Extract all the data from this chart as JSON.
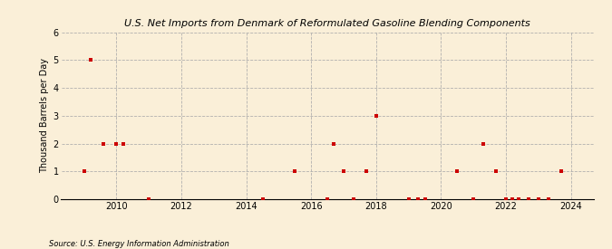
{
  "title": "U.S. Net Imports from Denmark of Reformulated Gasoline Blending Components",
  "ylabel": "Thousand Barrels per Day",
  "source_text": "Source: U.S. Energy Information Administration",
  "background_color": "#faefd8",
  "plot_bg_color": "#faefd8",
  "marker_color": "#cc0000",
  "marker_size": 3.5,
  "ylim": [
    0,
    6
  ],
  "yticks": [
    0,
    1,
    2,
    3,
    4,
    5,
    6
  ],
  "xlim_start": 2008.3,
  "xlim_end": 2024.7,
  "xticks": [
    2010,
    2012,
    2014,
    2016,
    2018,
    2020,
    2022,
    2024
  ],
  "data_points": [
    {
      "year": 2009.0,
      "value": 1
    },
    {
      "year": 2009.2,
      "value": 5
    },
    {
      "year": 2009.6,
      "value": 2
    },
    {
      "year": 2010.0,
      "value": 2
    },
    {
      "year": 2010.2,
      "value": 2
    },
    {
      "year": 2011.0,
      "value": 0
    },
    {
      "year": 2014.5,
      "value": 0
    },
    {
      "year": 2015.5,
      "value": 1
    },
    {
      "year": 2016.5,
      "value": 0
    },
    {
      "year": 2016.7,
      "value": 2
    },
    {
      "year": 2017.0,
      "value": 1
    },
    {
      "year": 2017.3,
      "value": 0
    },
    {
      "year": 2017.7,
      "value": 1
    },
    {
      "year": 2018.0,
      "value": 3
    },
    {
      "year": 2019.0,
      "value": 0
    },
    {
      "year": 2019.3,
      "value": 0
    },
    {
      "year": 2019.5,
      "value": 0
    },
    {
      "year": 2020.5,
      "value": 1
    },
    {
      "year": 2021.0,
      "value": 0
    },
    {
      "year": 2021.3,
      "value": 2
    },
    {
      "year": 2021.7,
      "value": 1
    },
    {
      "year": 2022.0,
      "value": 0
    },
    {
      "year": 2022.2,
      "value": 0
    },
    {
      "year": 2022.4,
      "value": 0
    },
    {
      "year": 2022.7,
      "value": 0
    },
    {
      "year": 2023.0,
      "value": 0
    },
    {
      "year": 2023.3,
      "value": 0
    },
    {
      "year": 2023.7,
      "value": 1
    }
  ]
}
